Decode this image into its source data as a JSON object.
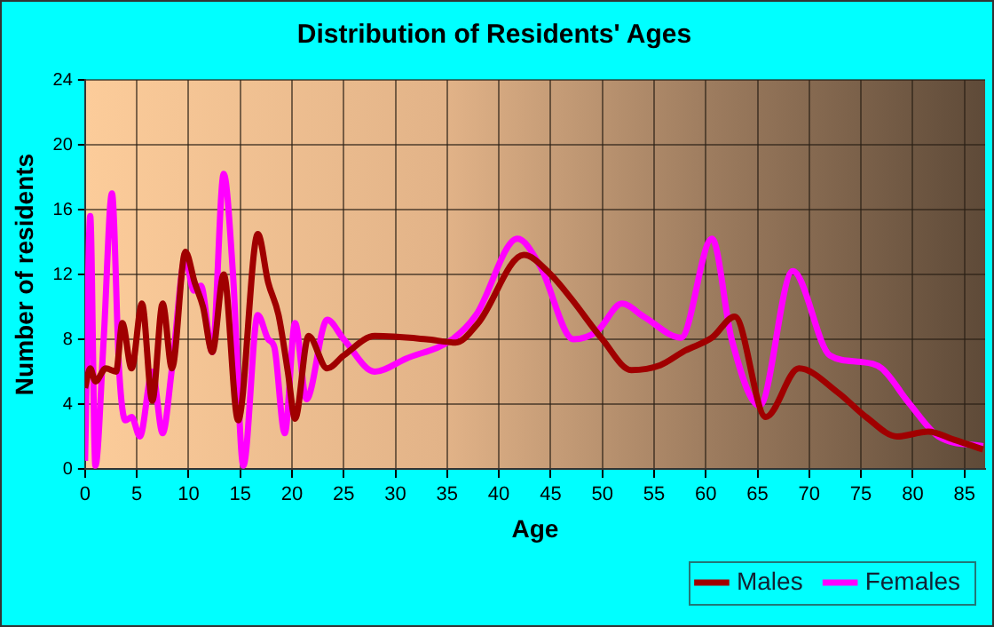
{
  "chart_data": {
    "type": "line",
    "title": "Distribution of Residents' Ages",
    "xlabel": "Age",
    "ylabel": "Number of residents",
    "xlim": [
      0,
      87
    ],
    "xticks": [
      0,
      5,
      10,
      15,
      20,
      25,
      30,
      35,
      40,
      45,
      50,
      55,
      60,
      65,
      70,
      75,
      80,
      85
    ],
    "ylim": [
      0,
      24
    ],
    "yticks": [
      0,
      4,
      8,
      12,
      16,
      20,
      24
    ],
    "grid": true,
    "legend": "bottom right",
    "marker": "none",
    "line_style": "solid",
    "series": [
      {
        "name": "Males",
        "color": "#a00000",
        "x": [
          0,
          0.5,
          1,
          2,
          3,
          3.6,
          4.5,
          5.5,
          6.5,
          7.5,
          8.4,
          9.7,
          10.6,
          11.4,
          12.3,
          13.4,
          14.8,
          16.7,
          17.7,
          18.7,
          19.6,
          20.3,
          21.6,
          23.4,
          25,
          28,
          33,
          35.8,
          38,
          42.4,
          45,
          47,
          50,
          52.8,
          55.6,
          58,
          60.6,
          62.8,
          65.8,
          69,
          72.8,
          75.5,
          78.5,
          81.5,
          84,
          86.8
        ],
        "values": [
          5,
          6.2,
          5.4,
          6.2,
          6,
          9,
          6.2,
          10.2,
          4.2,
          10.2,
          6.2,
          13.4,
          11.5,
          10,
          7.2,
          12,
          3,
          14.5,
          11.5,
          9.5,
          6,
          3.1,
          8.2,
          6.2,
          7,
          8.2,
          8,
          7.8,
          9,
          13.2,
          12,
          10.5,
          8,
          6.1,
          6.4,
          7.3,
          8.1,
          9.4,
          3.2,
          6.2,
          4.7,
          3.2,
          2,
          2.3,
          1.8,
          1.2
        ]
      },
      {
        "name": "Females",
        "color": "#ff00ff",
        "x": [
          0,
          0.5,
          1,
          1.8,
          2.6,
          3.3,
          3.9,
          4.5,
          5.3,
          6.5,
          7.5,
          8.4,
          9.7,
          10.5,
          11.2,
          12.3,
          13.4,
          14.3,
          15.3,
          16.7,
          17.7,
          18.3,
          19.3,
          20.3,
          21.4,
          23.4,
          25,
          28,
          31,
          35.5,
          37.8,
          41.8,
          44,
          47.2,
          49.5,
          51.9,
          54,
          57.6,
          60.6,
          62.5,
          65.2,
          68.4,
          72,
          75,
          77,
          79.6,
          82.5,
          86.8
        ],
        "values": [
          0.5,
          15.6,
          0.2,
          8,
          17,
          6,
          3,
          3.2,
          2,
          6,
          2.2,
          6.2,
          13,
          11,
          11.3,
          7.2,
          18.2,
          12,
          0.2,
          9.5,
          8,
          7.5,
          2.2,
          9,
          4.3,
          9.2,
          8,
          6,
          6.8,
          8,
          9.5,
          14.2,
          12.5,
          8,
          8.5,
          10.2,
          9.4,
          8.1,
          14.2,
          8,
          3.9,
          12.2,
          7,
          6.6,
          6.2,
          4.1,
          2,
          1.4
        ]
      }
    ]
  }
}
